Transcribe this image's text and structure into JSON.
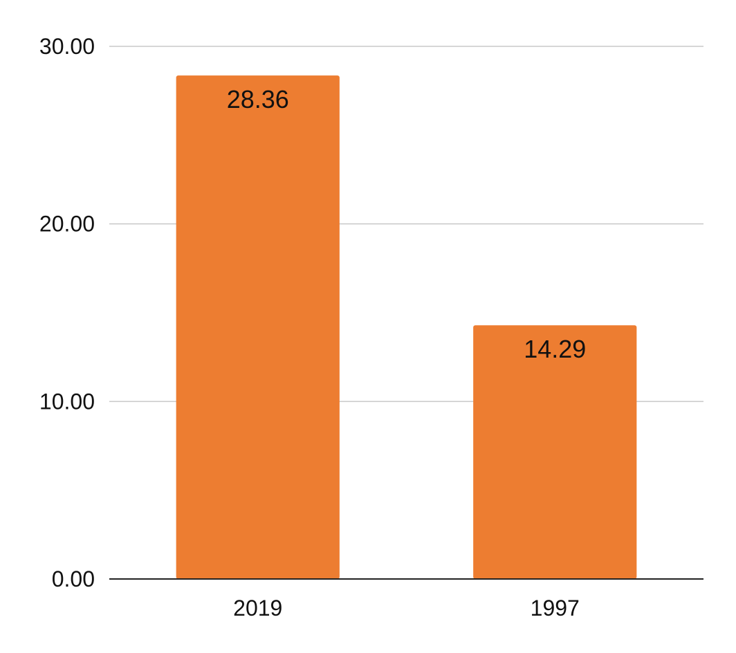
{
  "chart_data": {
    "type": "bar",
    "categories": [
      "2019",
      "1997"
    ],
    "values": [
      28.36,
      14.29
    ],
    "value_labels": [
      "28.36",
      "14.29"
    ],
    "y_ticks": [
      0,
      10,
      20,
      30
    ],
    "y_tick_labels": [
      "0.00",
      "10.00",
      "20.00",
      "30.00"
    ],
    "ylim": [
      0,
      30
    ],
    "title": "",
    "xlabel": "",
    "ylabel": "",
    "grid": true,
    "legend": "none",
    "bar_color": "#ED7D31"
  }
}
